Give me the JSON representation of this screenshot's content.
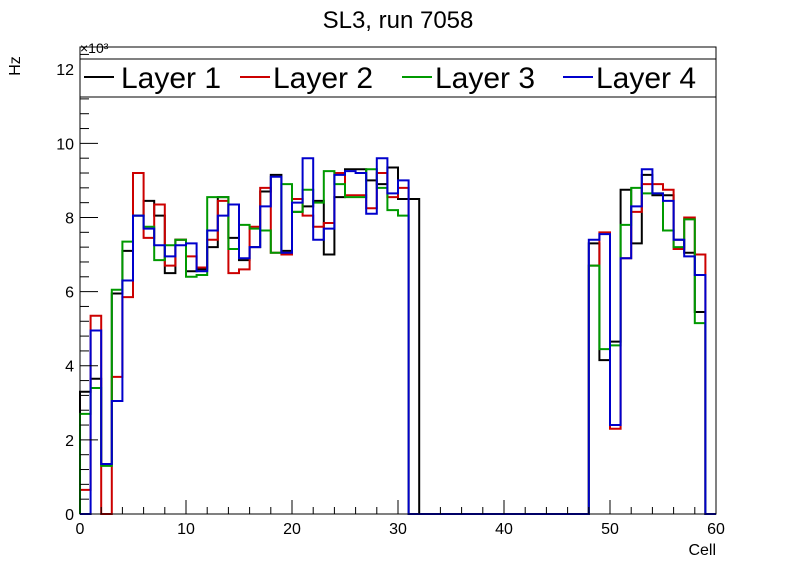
{
  "chart_data": {
    "type": "step-histogram",
    "title": "SL3, run 7058",
    "xlabel": "Cell",
    "ylabel": "Hz",
    "y_multiplier_label": "×10³",
    "xlim": [
      0,
      60
    ],
    "ylim": [
      0,
      12600
    ],
    "x_ticks": [
      0,
      10,
      20,
      30,
      40,
      50,
      60
    ],
    "x_tick_labels": [
      "0",
      "10",
      "20",
      "30",
      "40",
      "50",
      "60"
    ],
    "y_ticks": [
      0,
      2000,
      4000,
      6000,
      8000,
      10000,
      12000
    ],
    "y_tick_labels": [
      "0",
      "2",
      "4",
      "6",
      "8",
      "10",
      "12"
    ],
    "bin_width": 1,
    "legend_position": "top, full width",
    "series": [
      {
        "name": "Layer 1",
        "color": "#000000",
        "values": [
          3300,
          3650,
          1350,
          5950,
          7100,
          8050,
          8450,
          8050,
          6500,
          7400,
          6550,
          6600,
          7200,
          8550,
          7450,
          6850,
          7200,
          8700,
          9150,
          7100,
          8150,
          8300,
          8450,
          7000,
          8550,
          9300,
          9300,
          9000,
          8900,
          9350,
          8500,
          8500,
          0,
          0,
          0,
          0,
          0,
          0,
          0,
          0,
          0,
          0,
          0,
          0,
          0,
          0,
          0,
          0,
          7300,
          4150,
          4650,
          8750,
          7300,
          9150,
          8600,
          8600,
          7400,
          7050,
          5450,
          0
        ]
      },
      {
        "name": "Layer 2",
        "color": "#cc0000",
        "values": [
          650,
          5350,
          0,
          3700,
          5850,
          9200,
          7450,
          8350,
          6700,
          7400,
          6950,
          6650,
          7400,
          8450,
          6500,
          6600,
          7750,
          8800,
          7050,
          7000,
          8500,
          8050,
          7750,
          7850,
          9200,
          8600,
          8600,
          8250,
          9200,
          8550,
          8800,
          0,
          0,
          0,
          0,
          0,
          0,
          0,
          0,
          0,
          0,
          0,
          0,
          0,
          0,
          0,
          0,
          0,
          6700,
          7600,
          2300,
          6900,
          8150,
          8900,
          8900,
          8750,
          7150,
          8000,
          7000,
          0
        ]
      },
      {
        "name": "Layer 3",
        "color": "#009900",
        "values": [
          2700,
          3400,
          1300,
          6050,
          7350,
          8050,
          7750,
          6850,
          7250,
          7400,
          6400,
          6450,
          8550,
          8550,
          7150,
          7800,
          7700,
          7650,
          7050,
          8900,
          8150,
          8750,
          8400,
          9250,
          8900,
          8550,
          8550,
          9300,
          8800,
          8200,
          8050,
          0,
          0,
          0,
          0,
          0,
          0,
          0,
          0,
          0,
          0,
          0,
          0,
          0,
          0,
          0,
          0,
          0,
          6700,
          4450,
          4550,
          7800,
          8800,
          8650,
          8650,
          7650,
          7200,
          7950,
          5150,
          0
        ]
      },
      {
        "name": "Layer 4",
        "color": "#0000cc",
        "values": [
          0,
          4950,
          1350,
          3050,
          6300,
          8050,
          7700,
          7250,
          6950,
          7250,
          7300,
          6550,
          7650,
          8050,
          8350,
          6900,
          7200,
          8300,
          9100,
          7050,
          8400,
          9600,
          7400,
          7700,
          9150,
          9250,
          9200,
          8100,
          9600,
          8650,
          9000,
          0,
          0,
          0,
          0,
          0,
          0,
          0,
          0,
          0,
          0,
          0,
          0,
          0,
          0,
          0,
          0,
          0,
          7400,
          7550,
          2400,
          6900,
          8300,
          9300,
          8650,
          8450,
          7400,
          6950,
          6450,
          0
        ]
      }
    ]
  }
}
